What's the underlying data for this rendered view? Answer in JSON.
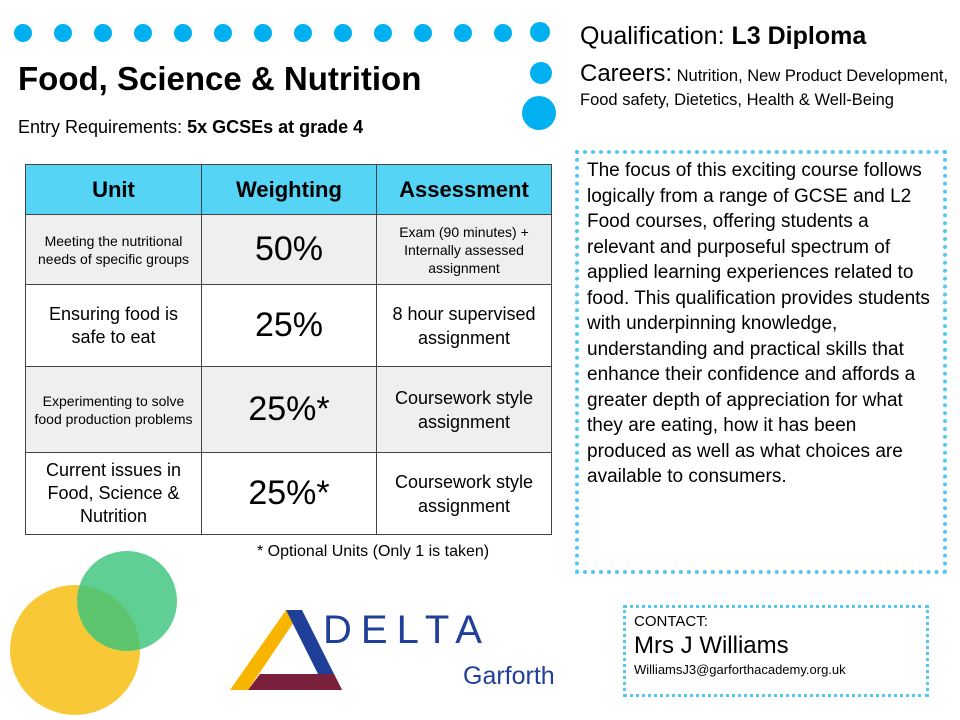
{
  "header": {
    "title": "Food, Science & Nutrition",
    "entry_label": "Entry Requirements:",
    "entry_value": "5x GCSEs at grade 4"
  },
  "qualification": {
    "label": "Qualification:",
    "value": "L3 Diploma"
  },
  "careers": {
    "label": "Careers:",
    "value": "Nutrition, New Product Development, Food safety, Dietetics, Health & Well-Being"
  },
  "table": {
    "headers": [
      "Unit",
      "Weighting",
      "Assessment"
    ],
    "rows": [
      {
        "unit": "Meeting the nutritional needs of specific groups",
        "weighting": "50%",
        "assessment": "Exam (90 minutes) + Internally assessed assignment"
      },
      {
        "unit": "Ensuring food is safe to eat",
        "weighting": "25%",
        "assessment": "8 hour supervised assignment"
      },
      {
        "unit": "Experimenting to solve food production problems",
        "weighting": "25%*",
        "assessment": "Coursework style assignment"
      },
      {
        "unit": "Current issues in Food, Science & Nutrition",
        "weighting": "25%*",
        "assessment": "Coursework style assignment"
      }
    ]
  },
  "optional_note": "* Optional Units (Only 1 is taken)",
  "description": "The focus of this exciting course follows logically from a range of GCSE and L2 Food courses, offering students a relevant and purposeful spectrum of applied learning experiences related to food. This qualification provides students with underpinning knowledge, understanding and practical skills that enhance their confidence and affords a greater depth of appreciation for what they are eating, how it has been produced as well as what choices are available to consumers.",
  "contact": {
    "heading": "CONTACT:",
    "name": "Mrs J Williams",
    "email": "WilliamsJ3@garforthacademy.org.uk"
  },
  "logo": {
    "word": "DELTA",
    "sub": "Garforth"
  },
  "colors": {
    "accent_blue": "#00b0f0",
    "header_fill": "#55d4f5",
    "dotted_border": "#55c8ee",
    "circle_yellow": "#f7c325",
    "circle_green": "#3cc47c",
    "logo_blue": "#1f3f99",
    "logo_maroon": "#7a1f3c"
  }
}
